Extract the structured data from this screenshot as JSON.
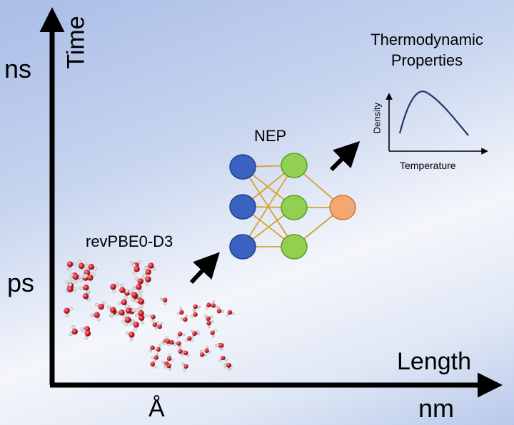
{
  "axes": {
    "y_title": "Time",
    "y_top": "ns",
    "y_bottom": "ps",
    "x_title": "Length",
    "x_left": "Å",
    "x_right": "nm"
  },
  "method_label": "revPBE0-D3",
  "model_label": "NEP",
  "properties": {
    "title": "Thermodynamic Properties",
    "y_label": "Density",
    "x_label": "Temperature"
  },
  "network": {
    "input_nodes": 3,
    "hidden_nodes": 3,
    "output_nodes": 1,
    "colors": {
      "input": "#3a62c0",
      "hidden": "#92d050",
      "output": "#f4a870",
      "edge": "#d4a32a"
    }
  },
  "colors": {
    "axis": "#000000",
    "oxygen": "#d21f2b",
    "hydrogen": "#e2e2e2",
    "curve": "#1f3864"
  }
}
